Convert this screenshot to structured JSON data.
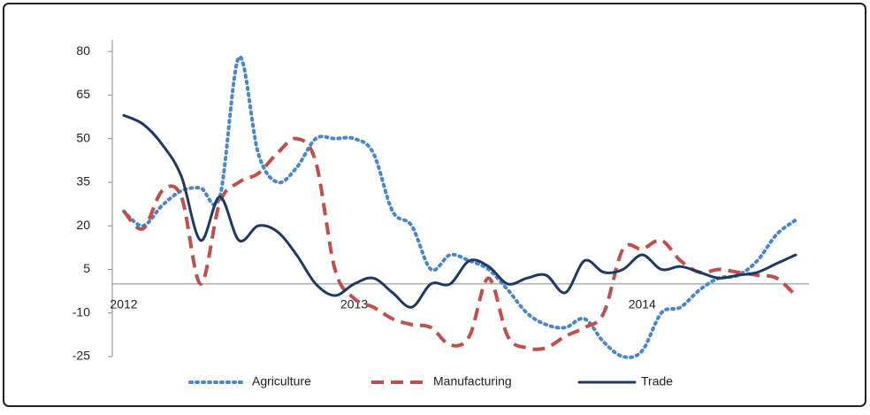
{
  "chart_data": {
    "type": "line",
    "categories": [
      "2012",
      null,
      null,
      null,
      null,
      null,
      null,
      null,
      null,
      null,
      null,
      null,
      "2013",
      null,
      null,
      null,
      null,
      null,
      null,
      null,
      null,
      null,
      null,
      null,
      null,
      null,
      null,
      "2014",
      null,
      null,
      null,
      null,
      null,
      null,
      null,
      null
    ],
    "series": [
      {
        "name": "Agriculture",
        "color": "#4a86c8",
        "dash": "dotted",
        "values": [
          25,
          20,
          27,
          32,
          33,
          30,
          78,
          45,
          35,
          40,
          50,
          50,
          50,
          45,
          25,
          20,
          5,
          10,
          8,
          5,
          -2,
          -10,
          -14,
          -15,
          -12,
          -20,
          -25,
          -23,
          -10,
          -8,
          -2,
          2,
          3,
          8,
          17,
          22
        ]
      },
      {
        "name": "Manufacturing",
        "color": "#c0504d",
        "dash": "dashed",
        "values": [
          25,
          19,
          32,
          30,
          0,
          28,
          35,
          38,
          45,
          50,
          42,
          5,
          -5,
          -8,
          -12,
          -14,
          -15,
          -21,
          -18,
          2,
          -18,
          -22,
          -22,
          -18,
          -15,
          -10,
          12,
          12,
          15,
          8,
          4,
          5,
          4,
          3,
          2,
          -4
        ]
      },
      {
        "name": "Trade",
        "color": "#1f3864",
        "dash": "solid",
        "values": [
          58,
          55,
          48,
          37,
          15,
          30,
          15,
          20,
          18,
          10,
          0,
          -4,
          0,
          2,
          -3,
          -8,
          0,
          0,
          8,
          6,
          0,
          2,
          3,
          -3,
          8,
          4,
          5,
          10,
          5,
          6,
          4,
          2,
          3,
          4,
          7,
          10
        ]
      }
    ],
    "ylim": [
      -25,
      84
    ],
    "yticks": [
      80,
      65,
      50,
      35,
      20,
      5,
      -10,
      -25
    ],
    "legend": "bottom"
  }
}
